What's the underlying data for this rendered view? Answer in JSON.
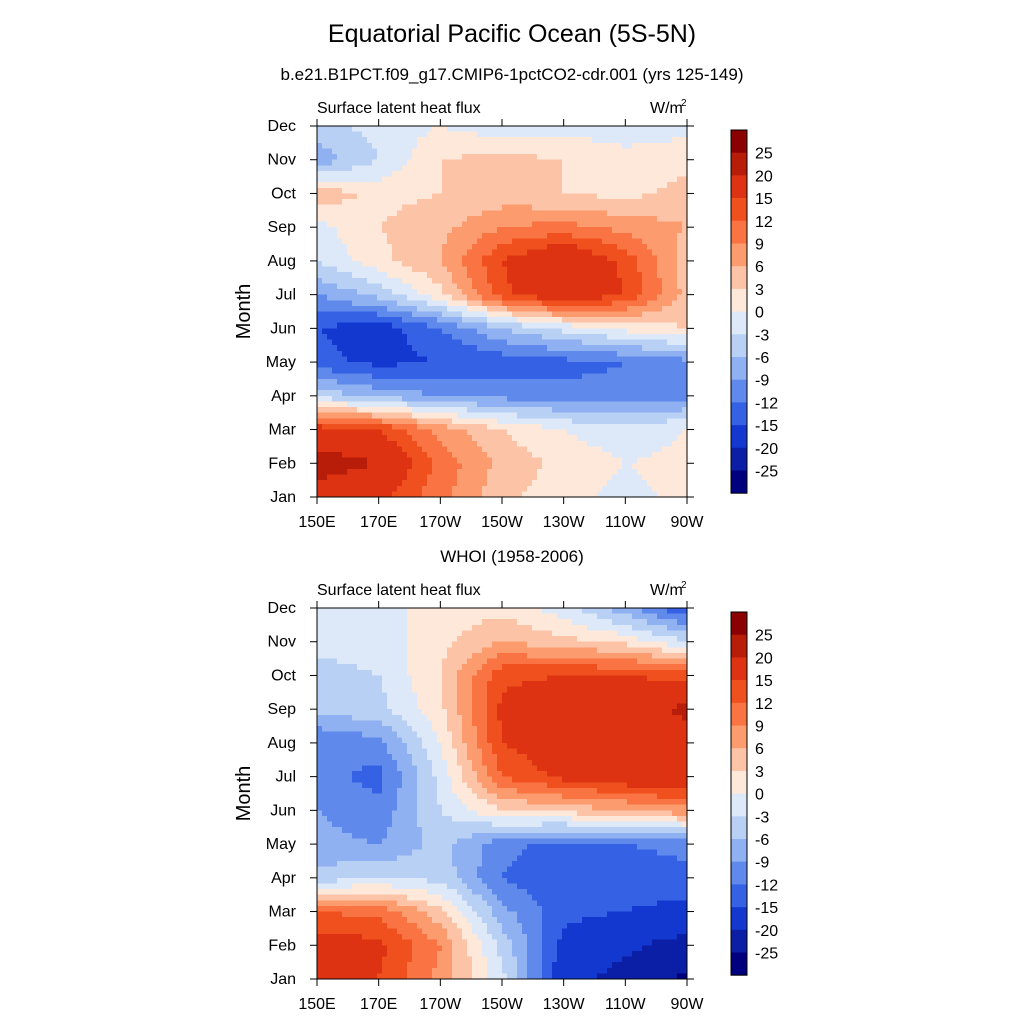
{
  "title": "Equatorial Pacific Ocean (5S-5N)",
  "colorbar": {
    "labels": [
      "25",
      "20",
      "15",
      "12",
      "9",
      "6",
      "3",
      "0",
      "-3",
      "-6",
      "-9",
      "-12",
      "-15",
      "-20",
      "-25"
    ],
    "colors": [
      "#8b0000",
      "#b81d0a",
      "#dd3312",
      "#f0501e",
      "#fa7343",
      "#fb9b6e",
      "#fcc3a6",
      "#fde8da",
      "#dde9f8",
      "#b9d0f5",
      "#8fb1f1",
      "#5f8aeb",
      "#3561e4",
      "#1238cf",
      "#0a1ea6",
      "#00007f"
    ]
  },
  "chart_data": [
    {
      "type": "heatmap",
      "title": "b.e21.B1PCT.f09_g17.CMIP6-1pctCO2-cdr.001 (yrs 125-149)",
      "left_label": "Surface latent heat flux",
      "units": "W/m",
      "units_sup": "2",
      "ylabel": "Month",
      "x_ticks": [
        "150E",
        "170E",
        "170W",
        "150W",
        "130W",
        "110W",
        "90W"
      ],
      "y_ticks": [
        "Jan",
        "Feb",
        "Mar",
        "Apr",
        "May",
        "Jun",
        "Jul",
        "Aug",
        "Sep",
        "Oct",
        "Nov",
        "Dec"
      ],
      "xlim": [
        150,
        270
      ],
      "levels": [
        -25,
        -20,
        -15,
        -12,
        -9,
        -6,
        -3,
        0,
        3,
        6,
        9,
        12,
        15,
        20,
        25
      ],
      "grid": {
        "x": [
          150,
          170,
          190,
          210,
          230,
          250,
          270
        ],
        "rows": [
          [
            18,
            16,
            10,
            4,
            1,
            -1,
            1
          ],
          [
            22,
            20,
            11,
            5,
            2,
            0,
            1
          ],
          [
            17,
            15,
            8,
            3,
            0,
            -2,
            0
          ],
          [
            -4,
            -7,
            -9,
            -10,
            -11,
            -11,
            -10
          ],
          [
            -14,
            -16,
            -15,
            -14,
            -13,
            -12,
            -10
          ],
          [
            -15,
            -17,
            -12,
            -6,
            -2,
            1,
            3
          ],
          [
            -9,
            -5,
            2,
            14,
            19,
            15,
            5
          ],
          [
            -3,
            2,
            6,
            15,
            20,
            14,
            4
          ],
          [
            -1,
            3,
            5,
            9,
            10,
            8,
            6
          ],
          [
            5,
            2,
            3,
            4,
            3,
            2,
            4
          ],
          [
            -8,
            -3,
            3,
            4,
            3,
            2,
            2
          ],
          [
            -4,
            -2,
            0,
            -2,
            -1,
            -3,
            -1
          ]
        ]
      }
    },
    {
      "type": "heatmap",
      "title": "WHOI (1958-2006)",
      "left_label": "Surface latent heat flux",
      "units": "W/m",
      "units_sup": "2",
      "ylabel": "Month",
      "x_ticks": [
        "150E",
        "170E",
        "170W",
        "150W",
        "130W",
        "110W",
        "90W"
      ],
      "y_ticks": [
        "Jan",
        "Feb",
        "Mar",
        "Apr",
        "May",
        "Jun",
        "Jul",
        "Aug",
        "Sep",
        "Oct",
        "Nov",
        "Dec"
      ],
      "xlim": [
        150,
        270
      ],
      "levels": [
        -25,
        -20,
        -15,
        -12,
        -9,
        -6,
        -3,
        0,
        3,
        6,
        9,
        12,
        15,
        20,
        25
      ],
      "grid": {
        "x": [
          150,
          170,
          190,
          210,
          230,
          250,
          270
        ],
        "rows": [
          [
            16,
            15,
            8,
            -2,
            -18,
            -22,
            -26
          ],
          [
            17,
            16,
            9,
            -4,
            -16,
            -19,
            -22
          ],
          [
            12,
            11,
            4,
            -8,
            -14,
            -15,
            -16
          ],
          [
            -5,
            -3,
            -4,
            -12,
            -15,
            -14,
            -13
          ],
          [
            -8,
            -9,
            -5,
            -11,
            -13,
            -12,
            -11
          ],
          [
            -9,
            -11,
            -3,
            3,
            4,
            6,
            8
          ],
          [
            -11,
            -13,
            -2,
            12,
            16,
            18,
            20
          ],
          [
            -12,
            -10,
            0,
            15,
            18,
            17,
            18
          ],
          [
            -5,
            -4,
            2,
            16,
            19,
            18,
            21
          ],
          [
            -4,
            -3,
            3,
            14,
            15,
            15,
            14
          ],
          [
            -2,
            -2,
            2,
            6,
            4,
            2,
            -3
          ],
          [
            -1,
            -1,
            1,
            2,
            -2,
            -8,
            -15
          ]
        ]
      }
    }
  ]
}
